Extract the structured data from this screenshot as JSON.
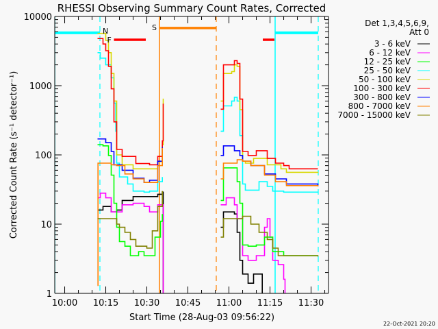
{
  "chart_data": {
    "type": "line",
    "title": "RHESSI Observing Summary Count Rates, Corrected",
    "xlabel": "Start Time (28-Aug-03 09:56:22)",
    "ylabel": "Corrected Count Rate (s⁻¹ detector⁻¹)",
    "x_range": [
      "09:56:22",
      "11:36:22"
    ],
    "ylim": [
      1,
      10000
    ],
    "y_scale": "log",
    "x_ticks": [
      "10:00",
      "10:15",
      "10:30",
      "10:45",
      "11:00",
      "11:15",
      "11:30"
    ],
    "y_ticks": [
      "1",
      "10",
      "100",
      "1000",
      "10000"
    ],
    "grid": false,
    "legend_placement": "outside-right",
    "legend_header": [
      "Det 1,3,4,5,6,9,",
      "Att 0"
    ],
    "timestamp": "22-Oct-2021 20:20",
    "series": [
      {
        "name": "3 - 6 keV",
        "color": "#000000",
        "segments": [
          [
            [
              "10:12",
              16
            ],
            [
              "10:14",
              18
            ],
            [
              "10:17",
              15
            ],
            [
              "10:19",
              16
            ],
            [
              "10:21",
              22
            ],
            [
              "10:25",
              25
            ],
            [
              "10:31",
              25
            ],
            [
              "10:34",
              27
            ],
            [
              "10:35:40",
              29
            ],
            [
              "10:36",
              0.5
            ]
          ],
          [
            [
              "10:57",
              9
            ],
            [
              "10:58",
              15
            ],
            [
              "11:02",
              14
            ],
            [
              "11:03",
              7.6
            ],
            [
              "11:04",
              3
            ],
            [
              "11:05",
              1.9
            ],
            [
              "11:07",
              1.4
            ],
            [
              "11:09",
              1.9
            ],
            [
              "11:12",
              1.9
            ],
            [
              "11:12:10",
              0.5
            ]
          ]
        ]
      },
      {
        "name": "6 - 12 keV",
        "color": "#ff00ff",
        "segments": [
          [
            [
              "10:12",
              24
            ],
            [
              "10:13",
              28
            ],
            [
              "10:15",
              24
            ],
            [
              "10:17",
              15
            ],
            [
              "10:19",
              15
            ],
            [
              "10:21",
              19
            ],
            [
              "10:25",
              20
            ],
            [
              "10:29",
              18
            ],
            [
              "10:31",
              15
            ],
            [
              "10:34",
              19
            ],
            [
              "10:35:40",
              19
            ],
            [
              "10:36",
              0.5
            ]
          ],
          [
            [
              "10:57",
              19
            ],
            [
              "10:59",
              24
            ],
            [
              "11:02",
              19
            ],
            [
              "11:03",
              12
            ],
            [
              "11:05",
              3.5
            ],
            [
              "11:07",
              3
            ],
            [
              "11:10",
              3.5
            ],
            [
              "11:13",
              9
            ],
            [
              "11:14",
              12
            ],
            [
              "11:15",
              6.5
            ],
            [
              "11:16",
              3
            ],
            [
              "11:18",
              2.6
            ],
            [
              "11:20",
              1.6
            ],
            [
              "11:20:30",
              0.5
            ]
          ]
        ]
      },
      {
        "name": "12 - 25 keV",
        "color": "#00ff00",
        "segments": [
          [
            [
              "10:12",
              140
            ],
            [
              "10:14",
              135
            ],
            [
              "10:16",
              98
            ],
            [
              "10:17",
              51
            ],
            [
              "10:18",
              20
            ],
            [
              "10:19",
              9
            ],
            [
              "10:20",
              5.6
            ],
            [
              "10:22",
              4.8
            ],
            [
              "10:24",
              3.5
            ],
            [
              "10:27",
              4
            ],
            [
              "10:29",
              3.5
            ],
            [
              "10:31",
              3.5
            ],
            [
              "10:33",
              6.5
            ],
            [
              "10:35",
              11
            ],
            [
              "10:35:40",
              14
            ]
          ],
          [
            [
              "10:57",
              22
            ],
            [
              "10:58",
              65
            ],
            [
              "11:01",
              65
            ],
            [
              "11:03",
              41
            ],
            [
              "11:04",
              20
            ],
            [
              "11:05",
              5
            ],
            [
              "11:07",
              4.8
            ],
            [
              "11:10",
              5
            ],
            [
              "11:13",
              6.5
            ],
            [
              "11:16",
              4
            ],
            [
              "11:20",
              3.5
            ],
            [
              "11:32:30",
              3.5
            ]
          ]
        ]
      },
      {
        "name": "25 - 50 keV",
        "color": "#00ffff",
        "segments": [
          [
            [
              "10:12",
              3000
            ],
            [
              "10:13",
              2500
            ],
            [
              "10:15",
              2000
            ],
            [
              "10:17",
              1300
            ],
            [
              "10:18",
              560
            ],
            [
              "10:18:40",
              220
            ],
            [
              "10:19",
              76
            ],
            [
              "10:20",
              48
            ],
            [
              "10:23",
              38
            ],
            [
              "10:25",
              30
            ],
            [
              "10:29",
              29
            ],
            [
              "10:31",
              30
            ],
            [
              "10:34",
              41
            ],
            [
              "10:35:40",
              48
            ]
          ],
          [
            [
              "10:57",
              220
            ],
            [
              "10:58",
              510
            ],
            [
              "11:01",
              600
            ],
            [
              "11:02",
              680
            ],
            [
              "11:03",
              600
            ],
            [
              "11:04",
              190
            ],
            [
              "11:05",
              38
            ],
            [
              "11:06",
              31
            ],
            [
              "11:11",
              41
            ],
            [
              "11:14",
              35
            ],
            [
              "11:16",
              30
            ],
            [
              "11:20",
              29
            ],
            [
              "11:32:30",
              29
            ]
          ]
        ]
      },
      {
        "name": "50 - 100 keV",
        "color": "#d8d800",
        "segments": [
          [
            [
              "10:12",
              5700
            ],
            [
              "10:15",
              4500
            ],
            [
              "10:16",
              3000
            ],
            [
              "10:17",
              1500
            ],
            [
              "10:18",
              600
            ],
            [
              "10:19",
              100
            ],
            [
              "10:21",
              72
            ],
            [
              "10:25",
              63
            ],
            [
              "10:31",
              63
            ],
            [
              "10:34",
              80
            ],
            [
              "10:35:40",
              140
            ],
            [
              "10:36",
              650
            ]
          ],
          [
            [
              "10:57",
              600
            ],
            [
              "10:58",
              1500
            ],
            [
              "11:01",
              1600
            ],
            [
              "11:02",
              2000
            ],
            [
              "11:03",
              1900
            ],
            [
              "11:04",
              450
            ],
            [
              "11:05",
              81
            ],
            [
              "11:06",
              76
            ],
            [
              "11:09",
              89
            ],
            [
              "11:14",
              72
            ],
            [
              "11:19",
              63
            ],
            [
              "11:21",
              56
            ],
            [
              "11:32:30",
              57
            ]
          ]
        ]
      },
      {
        "name": "100 - 300 keV",
        "color": "#ff0000",
        "segments": [
          [
            [
              "10:12",
              4800
            ],
            [
              "10:14",
              4000
            ],
            [
              "10:15",
              3200
            ],
            [
              "10:16",
              1900
            ],
            [
              "10:17",
              900
            ],
            [
              "10:18",
              300
            ],
            [
              "10:19",
              120
            ],
            [
              "10:21",
              95
            ],
            [
              "10:26",
              75
            ],
            [
              "10:31",
              72
            ],
            [
              "10:34",
              95
            ],
            [
              "10:35:40",
              160
            ],
            [
              "10:36",
              550
            ]
          ],
          [
            [
              "10:57",
              457
            ],
            [
              "10:58",
              2000
            ],
            [
              "11:01",
              2000
            ],
            [
              "11:02",
              2300
            ],
            [
              "11:03",
              2100
            ],
            [
              "11:04",
              640
            ],
            [
              "11:05",
              112
            ],
            [
              "11:07",
              98
            ],
            [
              "11:10",
              115
            ],
            [
              "11:14",
              89
            ],
            [
              "11:17",
              76
            ],
            [
              "11:20",
              70
            ],
            [
              "11:22",
              63
            ],
            [
              "11:32:30",
              63
            ]
          ]
        ]
      },
      {
        "name": "300 - 800 keV",
        "color": "#0000ff",
        "segments": [
          [
            [
              "10:12",
              170
            ],
            [
              "10:15",
              150
            ],
            [
              "10:17",
              112
            ],
            [
              "10:18",
              72
            ],
            [
              "10:21",
              60
            ],
            [
              "10:25",
              46
            ],
            [
              "10:29",
              40
            ],
            [
              "10:31",
              43
            ],
            [
              "10:34",
              81
            ],
            [
              "10:35:40",
              130
            ]
          ],
          [
            [
              "10:57",
              98
            ],
            [
              "10:58",
              135
            ],
            [
              "11:02",
              115
            ],
            [
              "11:04",
              98
            ],
            [
              "11:05",
              81
            ],
            [
              "11:08",
              70
            ],
            [
              "11:13",
              53
            ],
            [
              "11:17",
              45
            ],
            [
              "11:21",
              38
            ],
            [
              "11:32:30",
              35
            ]
          ]
        ]
      },
      {
        "name": "800 - 7000 keV",
        "color": "#ff8000",
        "segments": [
          [
            [
              "10:12",
              1.3
            ],
            [
              "10:12:10",
              76
            ],
            [
              "10:17",
              72
            ],
            [
              "10:19",
              70
            ],
            [
              "10:22",
              53
            ],
            [
              "10:25",
              45
            ],
            [
              "10:29",
              40
            ],
            [
              "10:31",
              40
            ],
            [
              "10:34",
              70
            ],
            [
              "10:35:40",
              126
            ]
          ],
          [
            [
              "10:57",
              45
            ],
            [
              "10:58",
              76
            ],
            [
              "11:03",
              85
            ],
            [
              "11:05",
              81
            ],
            [
              "11:08",
              70
            ],
            [
              "11:13",
              51
            ],
            [
              "11:17",
              41
            ],
            [
              "11:21",
              36
            ],
            [
              "11:32:30",
              35
            ]
          ]
        ]
      },
      {
        "name": "7000 - 15000 keV",
        "color": "#808000",
        "segments": [
          [
            [
              "10:12",
              12
            ],
            [
              "10:17",
              12
            ],
            [
              "10:19",
              10
            ],
            [
              "10:20",
              9
            ],
            [
              "10:22",
              7.6
            ],
            [
              "10:24",
              6
            ],
            [
              "10:26",
              4.8
            ],
            [
              "10:30",
              4.5
            ],
            [
              "10:32",
              8
            ],
            [
              "10:34",
              18
            ],
            [
              "10:35:40",
              30
            ]
          ],
          [
            [
              "10:57",
              6.5
            ],
            [
              "10:58",
              12
            ],
            [
              "11:02",
              12
            ],
            [
              "11:05",
              13
            ],
            [
              "11:08",
              10
            ],
            [
              "11:11",
              7.6
            ],
            [
              "11:14",
              6
            ],
            [
              "11:16",
              4.5
            ],
            [
              "11:18",
              3.5
            ],
            [
              "11:32:30",
              3.4
            ]
          ]
        ]
      }
    ],
    "annotations": {
      "vertical_lines": [
        {
          "time": "09:56:22",
          "color": "#00ffff",
          "style": "solid"
        },
        {
          "time": "10:12:52",
          "color": "#00ffff",
          "style": "dashed"
        },
        {
          "time": "10:34:37",
          "color": "#ff8000",
          "style": "solid"
        },
        {
          "time": "10:55:22",
          "color": "#ff8000",
          "style": "dashed"
        },
        {
          "time": "11:16:52",
          "color": "#00ffff",
          "style": "solid"
        },
        {
          "time": "11:32:37",
          "color": "#00ffff",
          "style": "dashed"
        }
      ],
      "flag_bars": [
        {
          "label": "N",
          "color": "#00ffff",
          "value": 5800,
          "spans": [
            [
              "09:56:22",
              "10:12:52"
            ],
            [
              "11:16:52",
              "11:32:37"
            ]
          ]
        },
        {
          "label": "F",
          "color": "#ff0000",
          "value": 4600,
          "spans": [
            [
              "10:18:00",
              "10:29:37"
            ],
            [
              "11:12:22",
              "11:16:37"
            ]
          ]
        },
        {
          "label": "S",
          "color": "#ff8000",
          "value": 6800,
          "spans": [
            [
              "10:34:37",
              "10:55:22"
            ]
          ]
        }
      ]
    }
  }
}
